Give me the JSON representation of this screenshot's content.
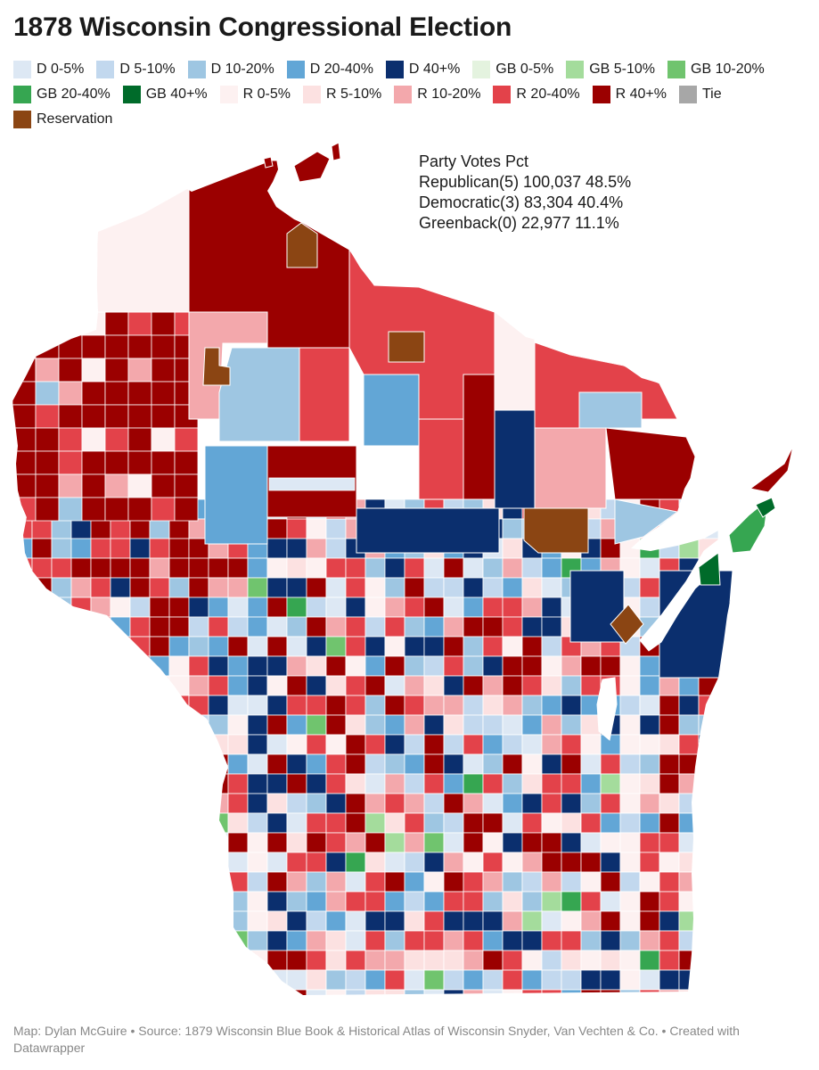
{
  "title": "1878 Wisconsin Congressional Election",
  "legend": [
    {
      "label": "D 0-5%",
      "color": "#dde8f4"
    },
    {
      "label": "D 5-10%",
      "color": "#c2d8ee"
    },
    {
      "label": "D 10-20%",
      "color": "#9ec6e2"
    },
    {
      "label": "D 20-40%",
      "color": "#62a6d6"
    },
    {
      "label": "D 40+%",
      "color": "#0b2f6e"
    },
    {
      "label": "GB 0-5%",
      "color": "#e4f3df"
    },
    {
      "label": "GB 5-10%",
      "color": "#a4dc9c"
    },
    {
      "label": "GB 10-20%",
      "color": "#70c46e"
    },
    {
      "label": "GB 20-40%",
      "color": "#36a651"
    },
    {
      "label": "GB 40+%",
      "color": "#006b2a"
    },
    {
      "label": "R 0-5%",
      "color": "#fdf1f1"
    },
    {
      "label": "R 5-10%",
      "color": "#fce1e1"
    },
    {
      "label": "R 10-20%",
      "color": "#f3a8ac"
    },
    {
      "label": "R 20-40%",
      "color": "#e3424a"
    },
    {
      "label": "R 40+%",
      "color": "#9b0000"
    },
    {
      "label": "Tie",
      "color": "#a7a7a7"
    },
    {
      "label": "Reservation",
      "color": "#8b4513"
    }
  ],
  "summary": {
    "header": "Party Votes Pct",
    "rows": [
      {
        "text": "Republican(5) 100,037 48.5%"
      },
      {
        "text": "Democratic(3) 83,304 40.4%"
      },
      {
        "text": "Greenback(0) 22,977 11.1%"
      }
    ]
  },
  "footer": "Map: Dylan McGuire • Source: 1879 Wisconsin Blue Book & Historical Atlas of Wisconsin Snyder, Van Vechten & Co. • Created with Datawrapper"
}
